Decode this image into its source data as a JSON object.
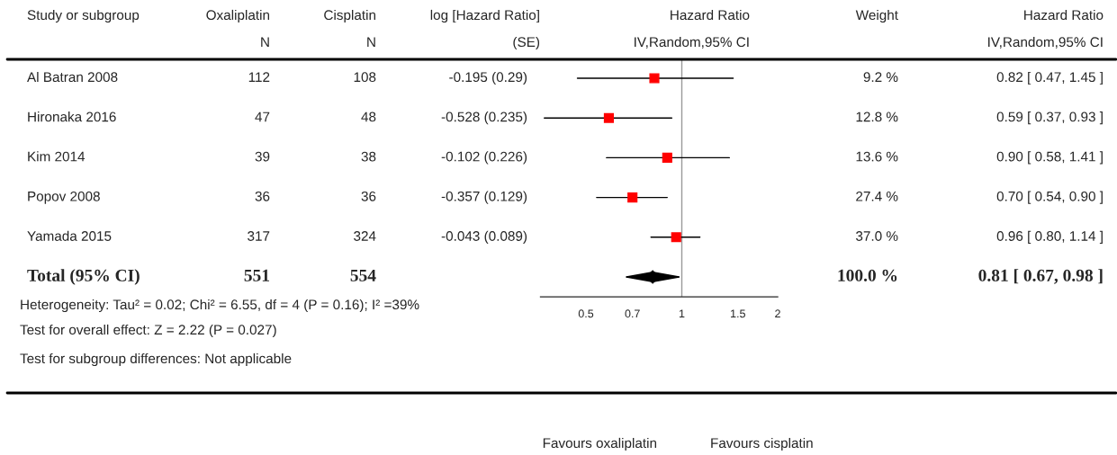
{
  "chart_data": {
    "type": "scatter",
    "orientation": "horizontal",
    "categories": [
      null,
      null,
      null,
      null,
      null,
      null
    ],
    "tick_labels": "x",
    "series": [
      {
        "marker": "square",
        "color": "#ff0000",
        "values": [
          0.82,
          0.59,
          0.9,
          0.7,
          0.96,
          null
        ],
        "errors": [
          [
            0.47,
            1.45
          ],
          [
            0.37,
            0.93
          ],
          [
            0.58,
            1.41
          ],
          [
            0.54,
            0.9
          ],
          [
            0.8,
            1.14
          ],
          null
        ]
      },
      {
        "marker": "diamond",
        "color": "#000000",
        "values": [
          null,
          null,
          null,
          null,
          null,
          0.81
        ],
        "errors": [
          null,
          null,
          null,
          null,
          null,
          [
            0.67,
            0.98
          ]
        ]
      }
    ],
    "log": "x",
    "xlim": [
      0.36,
      2
    ],
    "xticks": [
      0.5,
      0.7,
      1,
      1.5,
      2
    ],
    "grid": false,
    "ref_lines": [
      {
        "axis": "x",
        "value": 1,
        "color": "#999999"
      }
    ],
    "annotations": [
      "Al Batran 2008",
      "Hironaka 2016",
      "Kim 2014",
      "Popov 2008",
      "Yamada 2015",
      "Total (95% CI)",
      "Study or subgroup",
      "Oxaliplatin",
      "Cisplatin",
      "log [Hazard Ratio]",
      "Hazard Ratio",
      "Weight",
      "Hazard Ratio",
      "N",
      "N",
      "(SE)",
      "IV,Random,95% CI",
      "IV,Random,95% CI",
      "112",
      "108",
      "-0.195 (0.29)",
      "9.2 %",
      "0.82 [ 0.47, 1.45 ]",
      "47",
      "48",
      "-0.528 (0.235)",
      "12.8 %",
      "0.59 [ 0.37, 0.93 ]",
      "39",
      "38",
      "-0.102 (0.226)",
      "13.6 %",
      "0.90 [ 0.58, 1.41 ]",
      "36",
      "36",
      "-0.357 (0.129)",
      "27.4 %",
      "0.70 [ 0.54, 0.90 ]",
      "317",
      "324",
      "-0.043 (0.089)",
      "37.0 %",
      "0.96 [ 0.80, 1.14 ]",
      "551",
      "554",
      "100.0 %",
      "0.81 [ 0.67, 0.98 ]",
      "Heterogeneity: Tau² = 0.02; Chi² = 6.55, df = 4 (P = 0.16); I² =39%",
      "Test for overall effect: Z = 2.22 (P = 0.027)",
      "Test for subgroup differences: Not applicable",
      "Favours oxaliplatin",
      "Favours cisplatin"
    ]
  }
}
